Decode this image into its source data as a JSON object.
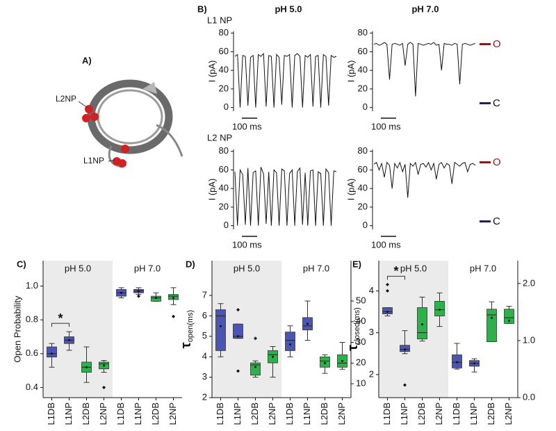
{
  "figure": {
    "panel_a": {
      "label": "A)",
      "sites": [
        "L2NP",
        "L1NP"
      ]
    },
    "panel_b": {
      "label": "B)",
      "columns": [
        "pH 5.0",
        "pH 7.0"
      ],
      "rows": [
        "L1 NP",
        "L2 NP"
      ],
      "ylabel": "I (pA)",
      "scale_bar": "100 ms",
      "open": "O",
      "closed": "C"
    }
  },
  "chart_data": [
    {
      "type": "line",
      "color": "#111111",
      "ylim": [
        -4,
        82
      ],
      "yticks": [
        0,
        20,
        40,
        60,
        80
      ],
      "values": [
        55,
        57,
        0,
        56,
        55,
        2,
        54,
        56,
        0,
        57,
        55,
        58,
        1,
        56,
        55,
        0,
        57,
        54,
        3,
        56,
        55,
        57,
        0,
        56,
        58,
        55,
        0,
        56,
        54,
        57,
        1,
        55,
        56,
        0,
        57,
        55,
        2,
        56,
        54,
        55
      ]
    },
    {
      "type": "line",
      "color": "#111111",
      "ylim": [
        -4,
        82
      ],
      "yticks": [
        0,
        20,
        40,
        60,
        80
      ],
      "values": [
        68,
        69,
        67,
        68,
        70,
        68,
        30,
        68,
        69,
        68,
        67,
        69,
        45,
        68,
        70,
        68,
        12,
        69,
        68,
        67,
        68,
        69,
        68,
        70,
        67,
        68,
        40,
        69,
        68,
        68,
        67,
        69,
        68,
        25,
        68,
        69,
        68,
        67,
        68,
        69
      ]
    },
    {
      "type": "line",
      "color": "#111111",
      "ylim": [
        -4,
        82
      ],
      "yticks": [
        0,
        20,
        40,
        60,
        80
      ],
      "values": [
        58,
        0,
        60,
        55,
        1,
        62,
        0,
        57,
        59,
        0,
        63,
        56,
        2,
        58,
        0,
        60,
        57,
        0,
        61,
        59,
        0,
        56,
        60,
        0,
        58,
        62,
        1,
        57,
        0,
        59,
        60,
        0,
        58,
        56,
        0,
        61,
        57,
        0,
        59,
        58
      ]
    },
    {
      "type": "line",
      "color": "#111111",
      "ylim": [
        -4,
        82
      ],
      "yticks": [
        0,
        20,
        40,
        60,
        80
      ],
      "values": [
        66,
        68,
        60,
        67,
        52,
        68,
        65,
        40,
        67,
        62,
        68,
        58,
        66,
        30,
        67,
        64,
        68,
        55,
        66,
        67,
        63,
        68,
        60,
        67,
        50,
        66,
        68,
        62,
        67,
        65,
        45,
        68,
        66,
        64,
        67,
        68,
        58,
        66,
        67,
        65
      ]
    },
    {
      "type": "box",
      "label": "C)",
      "ylabel": "Open Probability",
      "groups": [
        "pH 5.0",
        "pH 7.0"
      ],
      "categories": [
        "L1DB",
        "L1NP",
        "L2DB",
        "L2NP",
        "L1DB",
        "L1NP",
        "L2DB",
        "L2NP"
      ],
      "ylim": [
        0.34,
        1.15
      ],
      "yticks": [
        0.4,
        0.6,
        0.8,
        {
          "value": 1,
          "label": "1.0"
        }
      ],
      "significance": {
        "label": "*",
        "pair": [
          0,
          1
        ]
      },
      "boxes": [
        {
          "low": 0.52,
          "q1": 0.58,
          "median": 0.6,
          "q3": 0.64,
          "high": 0.66,
          "mean": 0.6,
          "outliers": [],
          "color": "#4b55b3",
          "axis": "y"
        },
        {
          "low": 0.62,
          "q1": 0.66,
          "median": 0.68,
          "q3": 0.7,
          "high": 0.73,
          "mean": 0.68,
          "outliers": [],
          "color": "#4b55b3",
          "axis": "y"
        },
        {
          "low": 0.43,
          "q1": 0.49,
          "median": 0.52,
          "q3": 0.55,
          "high": 0.64,
          "mean": 0.52,
          "outliers": [],
          "color": "#2bb34a",
          "axis": "y"
        },
        {
          "low": 0.49,
          "q1": 0.51,
          "median": 0.54,
          "q3": 0.55,
          "high": 0.56,
          "mean": 0.53,
          "outliers": [
            0.4
          ],
          "color": "#2bb34a",
          "axis": "y"
        },
        {
          "low": 0.93,
          "q1": 0.94,
          "median": 0.96,
          "q3": 0.98,
          "high": 0.99,
          "mean": 0.96,
          "outliers": [],
          "color": "#4b55b3",
          "axis": "y"
        },
        {
          "low": 0.95,
          "q1": 0.96,
          "median": 0.97,
          "q3": 0.98,
          "high": 0.99,
          "mean": 0.97,
          "outliers": [
            0.94
          ],
          "color": "#4b55b3",
          "axis": "y"
        },
        {
          "low": 0.91,
          "q1": 0.91,
          "median": 0.93,
          "q3": 0.94,
          "high": 0.96,
          "mean": 0.93,
          "outliers": [],
          "color": "#2bb34a",
          "axis": "y"
        },
        {
          "low": 0.89,
          "q1": 0.92,
          "median": 0.94,
          "q3": 0.95,
          "high": 0.99,
          "mean": 0.93,
          "outliers": [
            0.82
          ],
          "color": "#2bb34a",
          "axis": "y"
        }
      ]
    },
    {
      "type": "box",
      "label": "D)",
      "ylabel": {
        "symbol": "τ",
        "subscript": "open(ms)"
      },
      "groups": [
        "pH 5.0",
        "pH 7.0"
      ],
      "categories": [
        "L1DB",
        "L1NP",
        "L2DB",
        "L2NP",
        "L1DB",
        "L1NP",
        "L2DB",
        "L2NP"
      ],
      "ylim": [
        2,
        8.7
      ],
      "yticks": [
        2,
        3,
        4,
        5,
        6,
        7
      ],
      "y2lim": [
        3.3,
        69.5
      ],
      "y2ticks": [
        10,
        20,
        30,
        40,
        50
      ],
      "boxes": [
        {
          "low": 4.0,
          "q1": 4.3,
          "median": 6.0,
          "q3": 6.3,
          "high": 6.6,
          "mean": 5.5,
          "outliers": [],
          "color": "#4b55b3",
          "axis": "y"
        },
        {
          "low": 4.9,
          "q1": 4.9,
          "median": 5.0,
          "q3": 5.6,
          "high": 5.6,
          "mean": 5.0,
          "outliers": [
            6.3,
            3.3
          ],
          "color": "#4b55b3",
          "axis": "y"
        },
        {
          "low": 3.0,
          "q1": 3.1,
          "median": 3.6,
          "q3": 3.7,
          "high": 3.8,
          "mean": 3.5,
          "outliers": [
            4.9
          ],
          "color": "#2bb34a",
          "axis": "y"
        },
        {
          "low": 3.0,
          "q1": 3.7,
          "median": 4.1,
          "q3": 4.3,
          "high": 4.5,
          "mean": 4.0,
          "outliers": [],
          "color": "#2bb34a",
          "axis": "y"
        },
        {
          "low": 23,
          "q1": 26,
          "median": 31,
          "q3": 35,
          "high": 38,
          "mean": 29,
          "outliers": [],
          "color": "#4b55b3",
          "axis": "y2"
        },
        {
          "low": 31,
          "q1": 36,
          "median": 38,
          "q3": 42,
          "high": 50,
          "mean": 39,
          "outliers": [],
          "color": "#4b55b3",
          "axis": "y2"
        },
        {
          "low": 15,
          "q1": 18,
          "median": 21,
          "q3": 23,
          "high": 24,
          "mean": 20,
          "outliers": [],
          "color": "#2bb34a",
          "axis": "y2"
        },
        {
          "low": 17,
          "q1": 18,
          "median": 20,
          "q3": 24,
          "high": 30,
          "mean": 21,
          "outliers": [],
          "color": "#2bb34a",
          "axis": "y2"
        }
      ]
    },
    {
      "type": "box",
      "label": "E)",
      "ylabel": {
        "symbol": "τ",
        "subscript": "closed(ms)"
      },
      "groups": [
        "pH 5.0",
        "pH 7.0"
      ],
      "categories": [
        "L1DB",
        "L1NP",
        "L2DB",
        "L2NP",
        "L1DB",
        "L1NP",
        "L2DB",
        "L2NP"
      ],
      "ylim": [
        1.45,
        4.72
      ],
      "yticks": [
        2,
        3,
        4
      ],
      "y2lim": [
        0,
        2.4
      ],
      "y2ticks": [
        {
          "value": 0,
          "label": "0.0"
        },
        {
          "value": 1,
          "label": "1.0"
        },
        {
          "value": 2,
          "label": "2.0"
        }
      ],
      "significance": {
        "label": "*",
        "pair": [
          0,
          1
        ]
      },
      "boxes": [
        {
          "low": 3.4,
          "q1": 3.45,
          "median": 3.5,
          "q3": 3.6,
          "high": 3.6,
          "mean": 3.5,
          "outliers": [
            4.0,
            4.15
          ],
          "color": "#4b55b3",
          "axis": "y"
        },
        {
          "low": 2.5,
          "q1": 2.55,
          "median": 2.6,
          "q3": 2.7,
          "high": 3.05,
          "mean": 2.6,
          "outliers": [
            1.75
          ],
          "color": "#4b55b3",
          "axis": "y"
        },
        {
          "low": 2.8,
          "q1": 2.85,
          "median": 3.0,
          "q3": 3.6,
          "high": 3.85,
          "mean": 3.2,
          "outliers": [],
          "color": "#2bb34a",
          "axis": "y"
        },
        {
          "low": 3.15,
          "q1": 3.4,
          "median": 3.55,
          "q3": 3.75,
          "high": 3.95,
          "mean": 3.55,
          "outliers": [],
          "color": "#2bb34a",
          "axis": "y"
        },
        {
          "low": 0.5,
          "q1": 0.52,
          "median": 0.62,
          "q3": 0.75,
          "high": 0.95,
          "mean": 0.62,
          "outliers": [],
          "color": "#4b55b3",
          "axis": "y2"
        },
        {
          "low": 0.45,
          "q1": 0.55,
          "median": 0.6,
          "q3": 0.65,
          "high": 0.68,
          "mean": 0.6,
          "outliers": [],
          "color": "#4b55b3",
          "axis": "y2"
        },
        {
          "low": 0.98,
          "q1": 0.98,
          "median": 1.45,
          "q3": 1.55,
          "high": 1.68,
          "mean": 1.4,
          "outliers": [],
          "color": "#2bb34a",
          "axis": "y2"
        },
        {
          "low": 1.3,
          "q1": 1.3,
          "median": 1.4,
          "q3": 1.55,
          "high": 1.6,
          "mean": 1.35,
          "outliers": [],
          "color": "#2bb34a",
          "axis": "y2"
        }
      ]
    }
  ]
}
